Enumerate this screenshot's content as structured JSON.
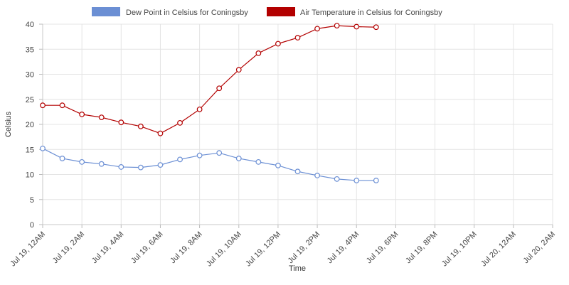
{
  "chart_data": {
    "type": "line",
    "title": "",
    "xlabel": "Time",
    "ylabel": "Celsius",
    "ylim": [
      0,
      40
    ],
    "yticks": [
      0,
      5,
      10,
      15,
      20,
      25,
      30,
      35,
      40
    ],
    "grid": true,
    "legend_position": "top-center",
    "x_hours": [
      0,
      1,
      2,
      3,
      4,
      5,
      6,
      7,
      8,
      9,
      10,
      11,
      12,
      13,
      14,
      15,
      16,
      17
    ],
    "x_range_hours": [
      0,
      26
    ],
    "x_ticks": [
      {
        "hour": 0,
        "label": "Jul 19, 12AM"
      },
      {
        "hour": 2,
        "label": "Jul 19, 2AM"
      },
      {
        "hour": 4,
        "label": "Jul 19, 4AM"
      },
      {
        "hour": 6,
        "label": "Jul 19, 6AM"
      },
      {
        "hour": 8,
        "label": "Jul 19, 8AM"
      },
      {
        "hour": 10,
        "label": "Jul 19, 10AM"
      },
      {
        "hour": 12,
        "label": "Jul 19, 12PM"
      },
      {
        "hour": 14,
        "label": "Jul 19, 2PM"
      },
      {
        "hour": 16,
        "label": "Jul 19, 4PM"
      },
      {
        "hour": 18,
        "label": "Jul 19, 6PM"
      },
      {
        "hour": 20,
        "label": "Jul 19, 8PM"
      },
      {
        "hour": 22,
        "label": "Jul 19, 10PM"
      },
      {
        "hour": 24,
        "label": "Jul 20, 12AM"
      },
      {
        "hour": 26,
        "label": "Jul 20, 2AM"
      }
    ],
    "series": [
      {
        "name": "Dew Point in Celsius for Coningsby",
        "color": "#6b8fd4",
        "values": [
          15.2,
          13.2,
          12.5,
          12.1,
          11.5,
          11.4,
          11.9,
          13.0,
          13.8,
          14.3,
          13.2,
          12.5,
          11.8,
          10.6,
          9.8,
          9.1,
          8.8,
          8.8
        ]
      },
      {
        "name": "Air Temperature in Celsius for Coningsby",
        "color": "#b30000",
        "values": [
          23.8,
          23.8,
          22.0,
          21.4,
          20.4,
          19.6,
          18.2,
          20.3,
          23.0,
          27.2,
          30.9,
          34.2,
          36.1,
          37.3,
          39.1,
          39.7,
          39.5,
          39.4
        ]
      }
    ]
  }
}
